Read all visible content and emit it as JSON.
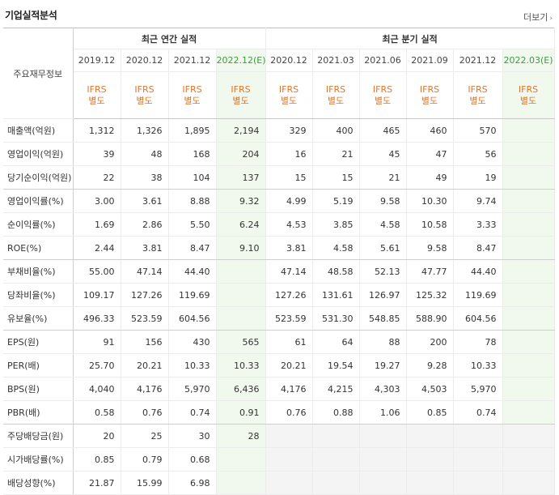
{
  "header": {
    "title": "기업실적분석",
    "more_label": "더보기",
    "more_arrow": "›"
  },
  "table": {
    "label_header": "주요재무정보",
    "annual_group": "최근 연간 실적",
    "quarter_group": "최근 분기 실적",
    "annual_dates": [
      "2019.12",
      "2020.12",
      "2021.12",
      "2022.12(E)"
    ],
    "quarter_dates": [
      "2020.12",
      "2021.03",
      "2021.06",
      "2021.09",
      "2021.12",
      "2022.03(E)"
    ],
    "ifrs_line1": "IFRS",
    "ifrs_line2": "별도",
    "rows": [
      {
        "label": "매출액(억원)",
        "annual": [
          "1,312",
          "1,326",
          "1,895",
          "2,194"
        ],
        "quarter": [
          "329",
          "400",
          "465",
          "460",
          "570",
          ""
        ]
      },
      {
        "label": "영업이익(억원)",
        "annual": [
          "39",
          "48",
          "168",
          "204"
        ],
        "quarter": [
          "16",
          "21",
          "45",
          "47",
          "56",
          ""
        ]
      },
      {
        "label": "당기순이익(억원)",
        "annual": [
          "22",
          "38",
          "104",
          "137"
        ],
        "quarter": [
          "15",
          "15",
          "21",
          "49",
          "19",
          ""
        ]
      },
      {
        "label": "영업이익률(%)",
        "annual": [
          "3.00",
          "3.61",
          "8.88",
          "9.32"
        ],
        "quarter": [
          "4.99",
          "5.19",
          "9.58",
          "10.30",
          "9.74",
          ""
        ]
      },
      {
        "label": "순이익률(%)",
        "annual": [
          "1.69",
          "2.86",
          "5.50",
          "6.24"
        ],
        "quarter": [
          "4.53",
          "3.85",
          "4.58",
          "10.58",
          "3.33",
          ""
        ]
      },
      {
        "label": "ROE(%)",
        "annual": [
          "2.44",
          "3.81",
          "8.47",
          "9.10"
        ],
        "quarter": [
          "3.81",
          "4.58",
          "5.61",
          "9.58",
          "8.47",
          ""
        ]
      },
      {
        "label": "부채비율(%)",
        "annual": [
          "55.00",
          "47.14",
          "44.40",
          ""
        ],
        "quarter": [
          "47.14",
          "48.58",
          "52.13",
          "47.77",
          "44.40",
          ""
        ]
      },
      {
        "label": "당좌비율(%)",
        "annual": [
          "109.17",
          "127.26",
          "119.69",
          ""
        ],
        "quarter": [
          "127.26",
          "131.61",
          "126.97",
          "125.32",
          "119.69",
          ""
        ]
      },
      {
        "label": "유보율(%)",
        "annual": [
          "496.33",
          "523.59",
          "604.56",
          ""
        ],
        "quarter": [
          "523.59",
          "531.30",
          "548.85",
          "588.90",
          "604.56",
          ""
        ]
      },
      {
        "label": "EPS(원)",
        "annual": [
          "91",
          "156",
          "430",
          "565"
        ],
        "quarter": [
          "61",
          "64",
          "88",
          "200",
          "78",
          ""
        ]
      },
      {
        "label": "PER(배)",
        "annual": [
          "25.70",
          "20.21",
          "10.33",
          "10.33"
        ],
        "quarter": [
          "20.21",
          "19.54",
          "19.27",
          "9.28",
          "10.33",
          ""
        ]
      },
      {
        "label": "BPS(원)",
        "annual": [
          "4,040",
          "4,176",
          "5,970",
          "6,436"
        ],
        "quarter": [
          "4,176",
          "4,215",
          "4,303",
          "4,503",
          "5,970",
          ""
        ]
      },
      {
        "label": "PBR(배)",
        "annual": [
          "0.58",
          "0.76",
          "0.74",
          "0.91"
        ],
        "quarter": [
          "0.76",
          "0.88",
          "1.06",
          "0.85",
          "0.74",
          ""
        ]
      },
      {
        "label": "주당배당금(원)",
        "annual": [
          "20",
          "25",
          "30",
          "28"
        ],
        "quarter": [
          "",
          "",
          "",
          "",
          "",
          ""
        ]
      },
      {
        "label": "시가배당률(%)",
        "annual": [
          "0.85",
          "0.79",
          "0.68",
          ""
        ],
        "quarter": [
          "",
          "",
          "",
          "",
          "",
          ""
        ]
      },
      {
        "label": "배당성향(%)",
        "annual": [
          "21.87",
          "15.99",
          "6.98",
          ""
        ],
        "quarter": [
          "",
          "",
          "",
          "",
          "",
          ""
        ]
      }
    ]
  }
}
